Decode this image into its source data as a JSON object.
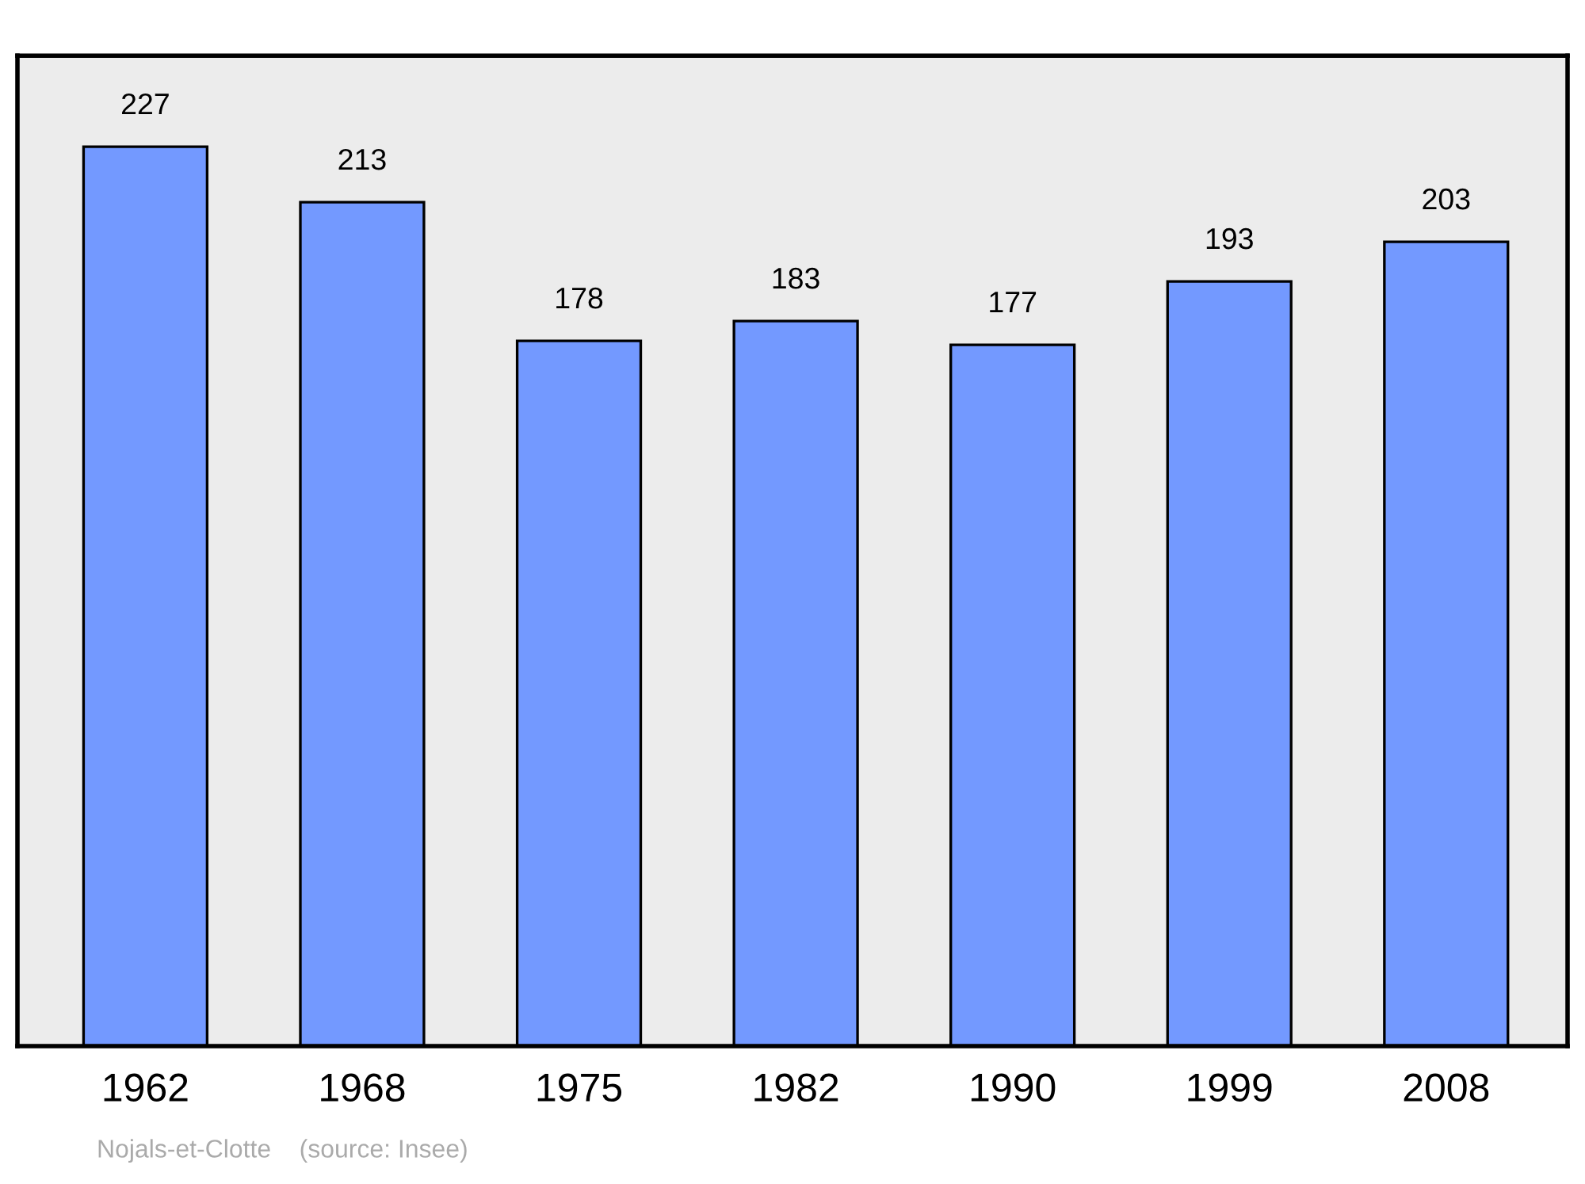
{
  "chart_data": {
    "type": "bar",
    "categories": [
      "1962",
      "1968",
      "1975",
      "1982",
      "1990",
      "1999",
      "2008"
    ],
    "values": [
      227,
      213,
      178,
      183,
      177,
      193,
      203
    ],
    "color": "#7399ff",
    "ylim": [
      0,
      250
    ],
    "tick_labels": "x",
    "data_labels": true,
    "grid": false,
    "legend": false,
    "annotations": [
      "Nojals-et-Clotte    (source: Insee)"
    ]
  }
}
